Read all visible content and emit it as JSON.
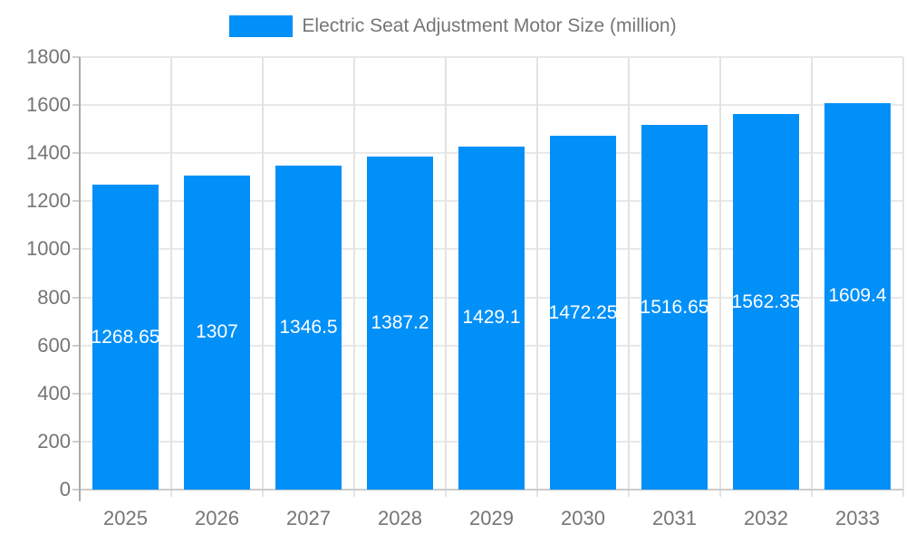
{
  "legend": {
    "label": "Electric Seat Adjustment Motor Size (million)",
    "swatch_color": "#0190F8"
  },
  "chart_data": {
    "type": "bar",
    "title": "Electric Seat Adjustment Motor Size (million)",
    "categories": [
      "2025",
      "2026",
      "2027",
      "2028",
      "2029",
      "2030",
      "2031",
      "2032",
      "2033"
    ],
    "values": [
      1268.65,
      1307,
      1346.5,
      1387.2,
      1429.1,
      1472.25,
      1516.65,
      1562.35,
      1609.4
    ],
    "data_labels": [
      "1268.65",
      "1307",
      "1346.5",
      "1387.2",
      "1429.1",
      "1472.25",
      "1516.65",
      "1562.35",
      "1609.4"
    ],
    "xlabel": "",
    "ylabel": "",
    "ylim": [
      0,
      1800
    ],
    "yticks": [
      0,
      200,
      400,
      600,
      800,
      1000,
      1200,
      1400,
      1600,
      1800
    ],
    "grid": true,
    "legend_position": "top",
    "bar_color": "#0190F8",
    "data_label_color": "#FFFFFF",
    "axis_text_color": "#757575"
  }
}
